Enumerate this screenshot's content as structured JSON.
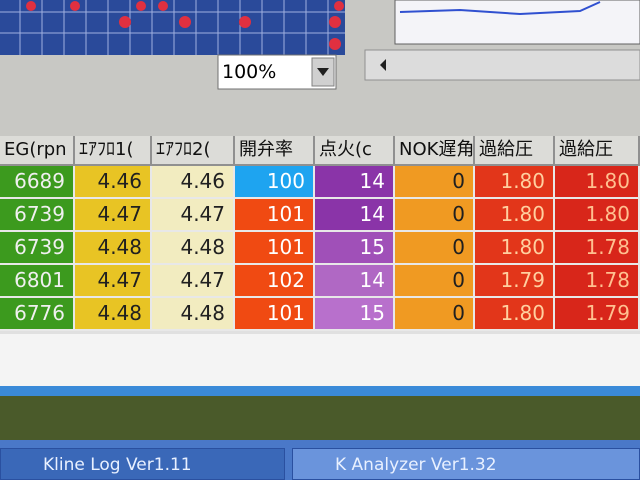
{
  "zoom": "100%",
  "table": {
    "headers": [
      "EG(rpn",
      "ｴｱﾌﾛ1(",
      "ｴｱﾌﾛ2(",
      "開弁率",
      "点火(c",
      "NOK遅角",
      "過給圧",
      "過給圧"
    ],
    "rows": [
      [
        "6689",
        "4.46",
        "4.46",
        "100",
        "14",
        "0",
        "1.80",
        "1.80"
      ],
      [
        "6739",
        "4.47",
        "4.47",
        "101",
        "14",
        "0",
        "1.80",
        "1.80"
      ],
      [
        "6739",
        "4.48",
        "4.48",
        "101",
        "15",
        "0",
        "1.80",
        "1.78"
      ],
      [
        "6801",
        "4.47",
        "4.47",
        "102",
        "14",
        "0",
        "1.79",
        "1.78"
      ],
      [
        "6776",
        "4.48",
        "4.48",
        "101",
        "15",
        "0",
        "1.80",
        "1.79"
      ]
    ]
  },
  "taskbar": [
    "Kline Log Ver1.11",
    "K Analyzer Ver1.32"
  ]
}
